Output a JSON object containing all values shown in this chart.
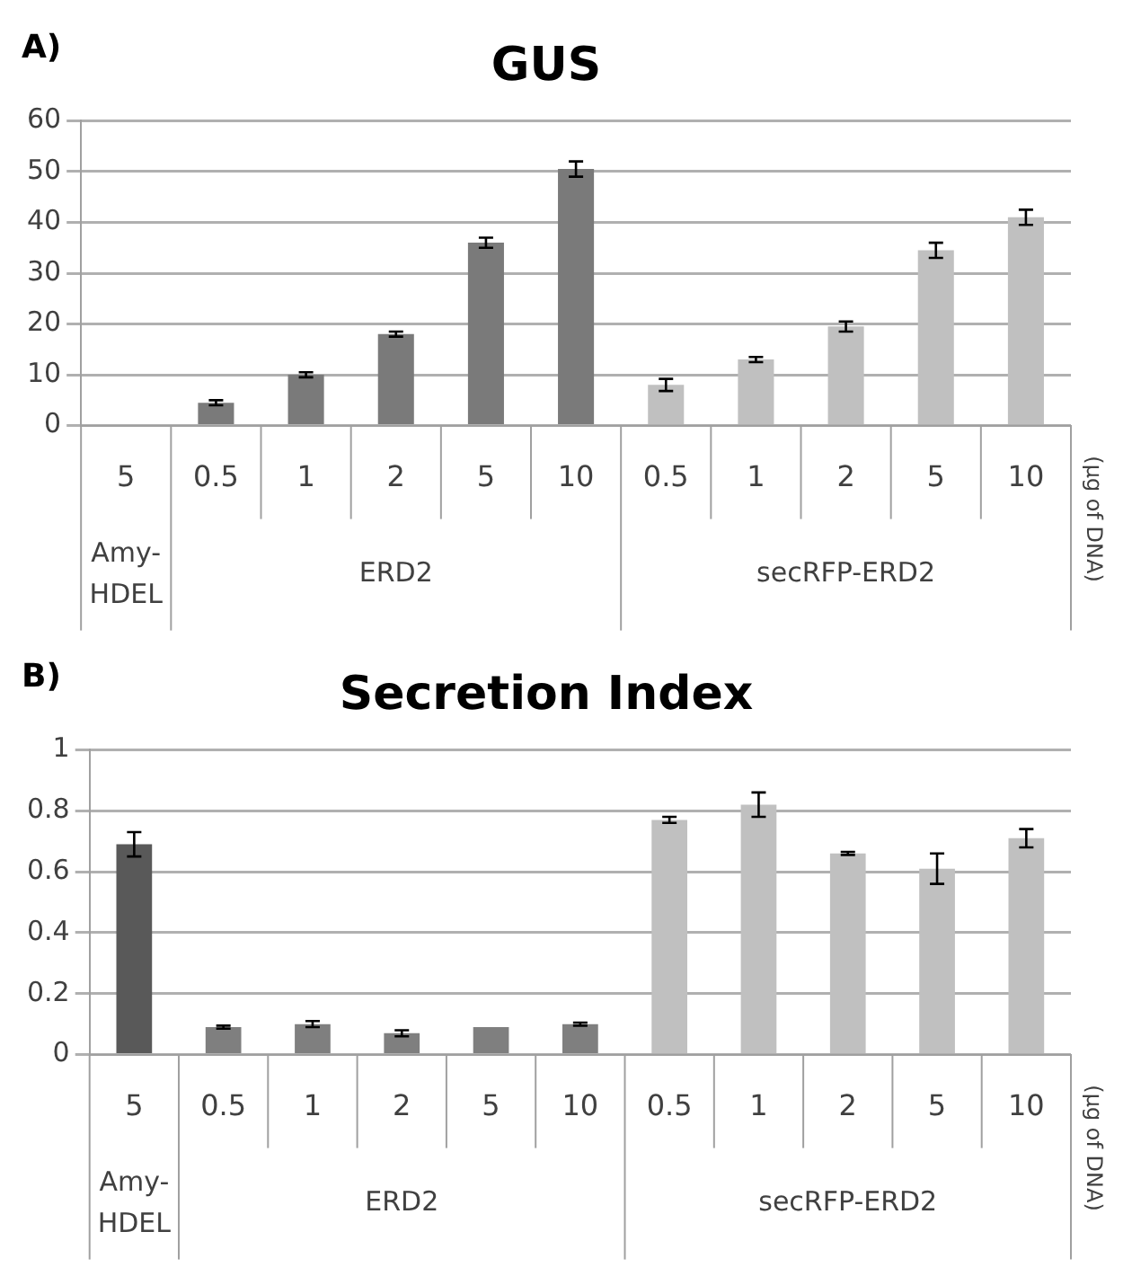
{
  "chart_data": [
    {
      "type": "bar",
      "title": "GUS",
      "annotations": [
        "A)",
        "Amy-HDEL",
        "ERD2",
        "secRFP-ERD2",
        "(µg of DNA)"
      ],
      "categories": [
        "5",
        "0.5",
        "1",
        "2",
        "5",
        "10",
        "0.5",
        "1",
        "2",
        "5",
        "10"
      ],
      "values": [
        0,
        4.5,
        10,
        18,
        36,
        50.5,
        8,
        13,
        19.5,
        34.5,
        41
      ],
      "errors": [
        null,
        0.5,
        0.5,
        0.5,
        1,
        1.5,
        1.2,
        0.5,
        1,
        1.5,
        1.5
      ],
      "colors": [
        "#595959",
        "#7a7a7a",
        "#7a7a7a",
        "#7a7a7a",
        "#7a7a7a",
        "#7a7a7a",
        "#c0c0c0",
        "#c0c0c0",
        "#c0c0c0",
        "#c0c0c0",
        "#c0c0c0"
      ],
      "ylim": [
        0,
        60
      ],
      "yticks": [
        0,
        10,
        20,
        30,
        40,
        50,
        60
      ],
      "grid": "y"
    },
    {
      "type": "bar",
      "title": "Secretion Index",
      "annotations": [
        "B)",
        "Amy-HDEL",
        "ERD2",
        "secRFP-ERD2",
        "(µg of DNA)"
      ],
      "categories": [
        "5",
        "0.5",
        "1",
        "2",
        "5",
        "10",
        "0.5",
        "1",
        "2",
        "5",
        "10"
      ],
      "values": [
        0.69,
        0.09,
        0.1,
        0.07,
        0.09,
        0.1,
        0.77,
        0.82,
        0.66,
        0.61,
        0.71
      ],
      "errors": [
        0.04,
        0.005,
        0.01,
        0.01,
        null,
        0.005,
        0.01,
        0.04,
        0.005,
        0.05,
        0.03
      ],
      "colors": [
        "#595959",
        "#7f7f7f",
        "#7f7f7f",
        "#7f7f7f",
        "#7f7f7f",
        "#7f7f7f",
        "#c0c0c0",
        "#c0c0c0",
        "#c0c0c0",
        "#c0c0c0",
        "#c0c0c0"
      ],
      "ylim": [
        0,
        1
      ],
      "yticks": [
        0,
        0.2,
        0.4,
        0.6,
        0.8,
        1
      ],
      "grid": "y"
    }
  ]
}
